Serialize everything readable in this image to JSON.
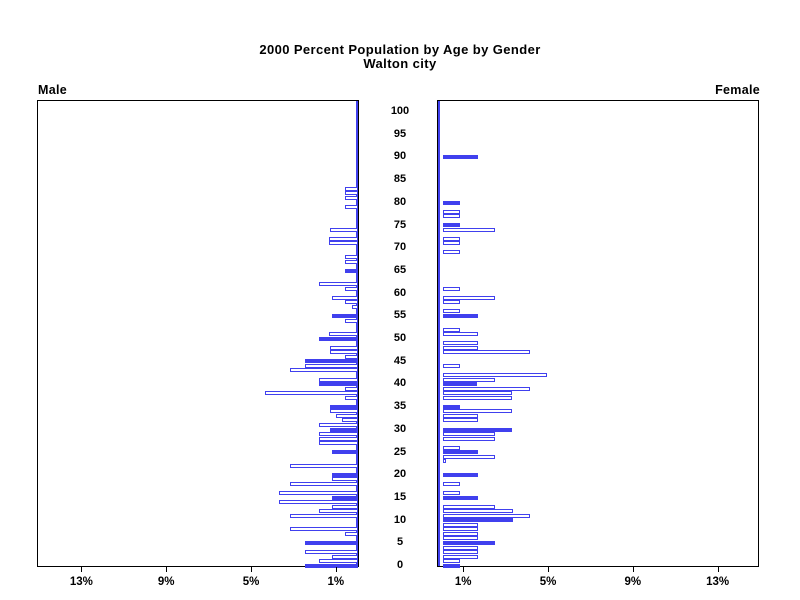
{
  "chart_data": {
    "type": "bar",
    "variant": "population-pyramid",
    "title": "2000 Percent Population by Age by Gender",
    "subtitle": "Walton city",
    "left_series_label": "Male",
    "right_series_label": "Female",
    "grid": false,
    "age_axis": {
      "min": 0,
      "max": 100,
      "tick_interval": 5,
      "tick_labels": [
        "0",
        "5",
        "10",
        "15",
        "20",
        "25",
        "30",
        "35",
        "40",
        "45",
        "50",
        "55",
        "60",
        "65",
        "70",
        "75",
        "80",
        "85",
        "90",
        "95",
        "100"
      ]
    },
    "percent_axis": {
      "tick_values": [
        1,
        5,
        9,
        13
      ],
      "male_tick_labels": [
        "13%",
        "9%",
        "5%",
        "1%"
      ],
      "female_tick_labels": [
        "1%",
        "5%",
        "9%",
        "13%"
      ],
      "max_percent_shown": 15
    },
    "solid_fill_rule": "bars at ages that are multiples of 5 are filled solid; other ages are hollow outlines",
    "bar_color": "#4040ee",
    "frame_color": "#000000",
    "male_pct_by_age": [
      2.5,
      1.85,
      1.25,
      2.5,
      0,
      2.5,
      0,
      0.6,
      3.2,
      0,
      0,
      3.2,
      1.85,
      1.25,
      3.75,
      1.25,
      3.75,
      0,
      3.2,
      1.25,
      1.25,
      0,
      3.2,
      0,
      0,
      1.25,
      0,
      1.85,
      1.85,
      1.85,
      1.3,
      1.85,
      0.75,
      1.05,
      1.3,
      1.3,
      0,
      0.6,
      4.4,
      0.6,
      1.85,
      1.85,
      0,
      3.2,
      2.5,
      2.5,
      0.6,
      1.3,
      1.3,
      0,
      1.85,
      1.35,
      0,
      0,
      0.6,
      1.25,
      0,
      0.3,
      0.6,
      1.25,
      0,
      0.6,
      1.85,
      0,
      0,
      0.6,
      0,
      0.6,
      0.6,
      0,
      0,
      1.35,
      1.35,
      0,
      1.3,
      0,
      0,
      0,
      0,
      0.6,
      0,
      0.6,
      0.6,
      0.6,
      0,
      0,
      0,
      0,
      0,
      0,
      0,
      0,
      0,
      0,
      0,
      0,
      0,
      0,
      0,
      0,
      0
    ],
    "female_pct_by_age": [
      0.8,
      0.8,
      1.63,
      1.63,
      1.63,
      2.45,
      1.63,
      1.63,
      1.63,
      1.63,
      3.29,
      4.1,
      3.29,
      2.46,
      0,
      1.65,
      0.8,
      0,
      0.8,
      0,
      1.65,
      0,
      0,
      0.15,
      2.45,
      1.63,
      0.8,
      0,
      2.45,
      2.45,
      3.25,
      0,
      1.63,
      1.63,
      3.25,
      0.8,
      0,
      3.25,
      3.25,
      4.1,
      1.6,
      2.45,
      4.9,
      0,
      0.8,
      0,
      0,
      4.1,
      1.63,
      1.63,
      0,
      1.63,
      0.8,
      0,
      0,
      1.65,
      0.8,
      0,
      0.8,
      2.45,
      0,
      0.8,
      0,
      0,
      0,
      0,
      0,
      0,
      0,
      0.8,
      0,
      0.8,
      0.8,
      0,
      2.45,
      0.8,
      0,
      0.8,
      0.8,
      0,
      0.8,
      0,
      0,
      0,
      0,
      0,
      0,
      0,
      0,
      0,
      1.65,
      0,
      0,
      0,
      0,
      0,
      0,
      0,
      0,
      0,
      0
    ]
  },
  "layout_constants_note": "positions derived from chart_data by the renderer"
}
